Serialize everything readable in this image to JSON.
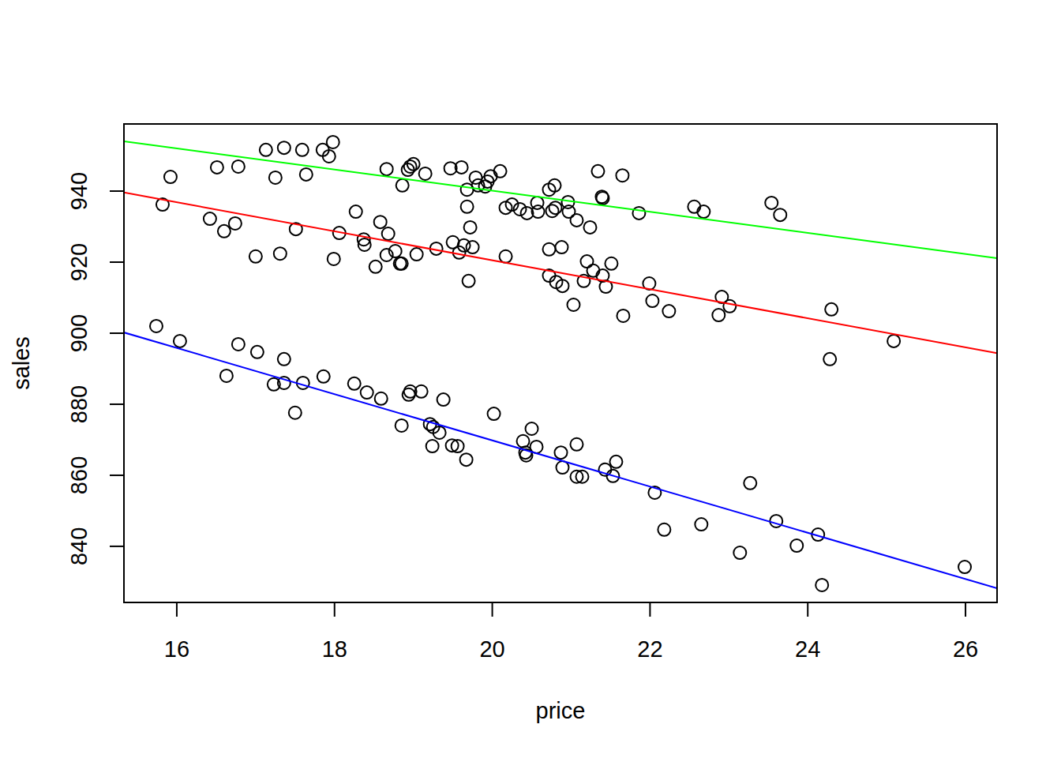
{
  "chart_data": {
    "type": "scatter",
    "x_label": "price",
    "y_label": "sales",
    "xlim": [
      15.33,
      26.4
    ],
    "ylim": [
      824.2,
      958.9
    ],
    "xticks": [
      16,
      18,
      20,
      22,
      24,
      26
    ],
    "yticks": [
      840,
      860,
      880,
      900,
      920,
      940
    ],
    "series": [
      {
        "type": "scatter",
        "marker": "circle",
        "color": "#000000",
        "x": [
          17.13,
          17.36,
          17.59,
          17.85,
          17.93,
          17.98,
          16.51,
          16.78,
          15.92,
          17.25,
          17.64,
          18.66,
          18.86,
          18.93,
          18.96,
          19.0,
          19.15,
          19.47,
          19.61,
          19.79,
          19.68,
          19.82,
          19.91,
          19.94,
          19.98,
          20.1,
          20.17,
          20.25,
          20.35,
          20.44,
          20.57,
          20.58,
          20.72,
          20.76,
          20.79,
          20.8,
          20.96,
          20.97,
          21.07,
          21.24,
          21.34,
          21.39,
          21.4,
          21.65,
          21.86,
          22.56,
          22.68,
          23.54,
          23.65,
          15.82,
          16.42,
          16.6,
          16.74,
          17.0,
          17.31,
          17.51,
          17.99,
          18.06,
          18.27,
          18.37,
          18.38,
          18.52,
          18.58,
          18.66,
          18.68,
          18.77,
          18.83,
          18.85,
          19.04,
          19.29,
          19.5,
          19.58,
          19.64,
          19.68,
          19.7,
          19.72,
          19.75,
          20.17,
          20.72,
          20.72,
          20.81,
          20.88,
          20.89,
          21.03,
          21.16,
          21.2,
          21.28,
          21.4,
          21.44,
          21.51,
          21.66,
          21.99,
          22.03,
          22.24,
          22.87,
          22.91,
          23.01,
          24.3,
          24.28,
          25.09,
          15.74,
          16.04,
          16.78,
          17.02,
          16.63,
          17.36,
          17.23,
          17.36,
          17.6,
          17.5,
          17.86,
          18.25,
          18.41,
          18.59,
          18.94,
          18.96,
          19.1,
          18.85,
          19.21,
          19.25,
          19.33,
          19.38,
          19.24,
          19.49,
          19.56,
          19.67,
          20.02,
          20.39,
          20.42,
          20.43,
          20.5,
          20.56,
          20.87,
          20.89,
          21.07,
          21.07,
          21.14,
          21.43,
          21.53,
          21.57,
          22.06,
          22.18,
          22.65,
          23.14,
          23.27,
          23.6,
          23.86,
          24.13,
          24.18,
          25.99
        ],
        "values": [
          951.6,
          952.2,
          951.6,
          951.6,
          949.8,
          953.8,
          946.7,
          946.9,
          944.0,
          943.8,
          944.7,
          946.2,
          941.6,
          946.0,
          946.9,
          947.6,
          944.9,
          946.4,
          946.7,
          943.8,
          940.4,
          941.6,
          941.3,
          942.7,
          944.2,
          945.6,
          935.3,
          936.2,
          934.9,
          933.8,
          936.7,
          934.2,
          940.4,
          934.4,
          941.6,
          935.3,
          936.9,
          934.2,
          931.8,
          929.8,
          945.6,
          938.4,
          938.0,
          944.4,
          933.8,
          935.6,
          934.2,
          936.7,
          933.3,
          936.2,
          932.2,
          928.7,
          930.9,
          921.6,
          922.4,
          929.3,
          920.9,
          928.2,
          934.2,
          926.4,
          924.9,
          918.7,
          931.3,
          922.0,
          928.0,
          923.1,
          919.6,
          919.6,
          922.2,
          923.8,
          925.6,
          922.7,
          924.7,
          935.6,
          914.7,
          929.8,
          924.2,
          921.6,
          923.6,
          916.2,
          914.4,
          924.2,
          913.3,
          908.0,
          914.7,
          920.2,
          917.6,
          916.2,
          913.1,
          919.6,
          904.9,
          914.0,
          909.1,
          906.2,
          905.1,
          910.2,
          907.6,
          906.7,
          892.7,
          897.8,
          902.0,
          897.8,
          896.9,
          894.7,
          888.0,
          892.7,
          885.6,
          886.0,
          886.0,
          877.6,
          887.8,
          885.8,
          883.3,
          881.6,
          882.7,
          883.6,
          883.6,
          874.0,
          874.4,
          873.6,
          872.0,
          881.3,
          868.2,
          868.4,
          868.2,
          864.4,
          877.3,
          869.6,
          866.4,
          865.6,
          873.1,
          868.0,
          866.4,
          862.2,
          868.7,
          859.6,
          859.6,
          861.6,
          859.8,
          863.8,
          855.1,
          844.7,
          846.2,
          838.2,
          857.8,
          847.1,
          840.2,
          843.3,
          829.1,
          834.2
        ]
      },
      {
        "type": "line",
        "color": "#00ff00",
        "x": [
          15.33,
          26.4
        ],
        "values": [
          954.0,
          921.1
        ]
      },
      {
        "type": "line",
        "color": "#ff0000",
        "x": [
          15.33,
          26.4
        ],
        "values": [
          939.6,
          894.4
        ]
      },
      {
        "type": "line",
        "color": "#0000ff",
        "x": [
          15.33,
          26.4
        ],
        "values": [
          900.2,
          828.2
        ]
      }
    ]
  }
}
